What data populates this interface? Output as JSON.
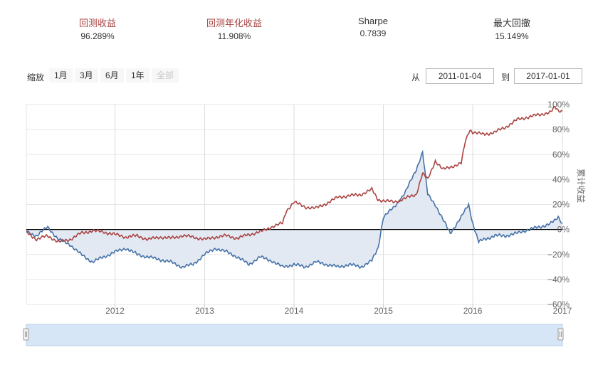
{
  "stats": [
    {
      "label": "回测收益",
      "value": "96.289%",
      "label_color": "#a94442"
    },
    {
      "label": "回测年化收益",
      "value": "11.908%",
      "label_color": "#a94442"
    },
    {
      "label": "Sharpe",
      "value": "0.7839",
      "label_color": "#333333"
    },
    {
      "label": "最大回撤",
      "value": "15.149%",
      "label_color": "#333333"
    }
  ],
  "toolbar": {
    "zoom_label": "缩放",
    "zoom_buttons": [
      "1月",
      "3月",
      "6月",
      "1年",
      "全部"
    ],
    "from_label": "从",
    "from_date": "2011-01-04",
    "to_label": "到",
    "to_date": "2017-01-01"
  },
  "chart_data": {
    "type": "line",
    "ylabel": "累计收益",
    "x_ticks": [
      "2012",
      "2013",
      "2014",
      "2015",
      "2016",
      "2017"
    ],
    "y_ticks": [
      "100%",
      "80%",
      "60%",
      "40%",
      "20%",
      "0%",
      "−20%",
      "−40%",
      "−60%"
    ],
    "xlim": [
      "2011-01-04",
      "2017-01-01"
    ],
    "ylim": [
      -60,
      100
    ],
    "grid": true,
    "colors": {
      "strategy": "#a94442",
      "benchmark": "#4572a7",
      "benchmark_fill": "#e3e9f3"
    },
    "series": [
      {
        "key": "strategy",
        "x": [
          "2011-01-04",
          "2011-02-15",
          "2011-04-01",
          "2011-05-15",
          "2011-07-01",
          "2011-08-15",
          "2011-10-01",
          "2011-11-15",
          "2012-01-01",
          "2012-02-15",
          "2012-04-01",
          "2012-05-15",
          "2012-07-01",
          "2012-08-15",
          "2012-10-01",
          "2012-11-15",
          "2013-01-01",
          "2013-02-15",
          "2013-04-01",
          "2013-05-15",
          "2013-07-01",
          "2013-08-15",
          "2013-10-01",
          "2013-11-15",
          "2013-12-01",
          "2014-01-01",
          "2014-02-15",
          "2014-04-01",
          "2014-05-15",
          "2014-07-01",
          "2014-08-15",
          "2014-10-01",
          "2014-11-15",
          "2014-12-10",
          "2015-01-01",
          "2015-02-15",
          "2015-04-01",
          "2015-05-15",
          "2015-06-10",
          "2015-07-01",
          "2015-08-01",
          "2015-09-01",
          "2015-10-01",
          "2015-11-15",
          "2015-12-01",
          "2015-12-20",
          "2016-01-01",
          "2016-02-15",
          "2016-04-01",
          "2016-05-15",
          "2016-07-01",
          "2016-08-15",
          "2016-10-01",
          "2016-11-15",
          "2016-12-01",
          "2016-12-15",
          "2017-01-01"
        ],
        "y": [
          -2,
          -8,
          -5,
          -10,
          -8,
          -3,
          -1,
          -2,
          -4,
          -6,
          -5,
          -8,
          -6,
          -7,
          -5,
          -6,
          -8,
          -6,
          -5,
          -7,
          -4,
          -2,
          2,
          5,
          15,
          22,
          18,
          17,
          21,
          26,
          27,
          28,
          32,
          24,
          23,
          22,
          25,
          28,
          45,
          40,
          55,
          48,
          50,
          53,
          70,
          80,
          78,
          76,
          78,
          82,
          88,
          90,
          92,
          94,
          98,
          95,
          95
        ]
      },
      {
        "key": "benchmark",
        "x": [
          "2011-01-04",
          "2011-02-15",
          "2011-04-01",
          "2011-05-15",
          "2011-07-01",
          "2011-08-15",
          "2011-10-01",
          "2011-11-15",
          "2012-01-01",
          "2012-02-15",
          "2012-04-01",
          "2012-05-15",
          "2012-07-01",
          "2012-08-15",
          "2012-10-01",
          "2012-11-15",
          "2013-01-01",
          "2013-02-15",
          "2013-04-01",
          "2013-05-15",
          "2013-07-01",
          "2013-08-15",
          "2013-10-01",
          "2013-11-15",
          "2014-01-01",
          "2014-02-15",
          "2014-04-01",
          "2014-05-15",
          "2014-07-01",
          "2014-08-15",
          "2014-10-01",
          "2014-11-15",
          "2014-12-10",
          "2015-01-01",
          "2015-02-15",
          "2015-04-01",
          "2015-05-15",
          "2015-06-10",
          "2015-07-01",
          "2015-08-01",
          "2015-09-01",
          "2015-10-01",
          "2015-11-15",
          "2015-12-15",
          "2016-01-01",
          "2016-01-25",
          "2016-02-15",
          "2016-04-01",
          "2016-05-15",
          "2016-07-01",
          "2016-08-15",
          "2016-10-01",
          "2016-11-15",
          "2016-12-01",
          "2016-12-15",
          "2017-01-01"
        ],
        "y": [
          -2,
          -5,
          2,
          -8,
          -12,
          -20,
          -26,
          -22,
          -18,
          -15,
          -20,
          -22,
          -24,
          -26,
          -30,
          -28,
          -20,
          -15,
          -18,
          -22,
          -28,
          -22,
          -25,
          -30,
          -28,
          -30,
          -26,
          -28,
          -30,
          -28,
          -30,
          -25,
          -15,
          10,
          18,
          30,
          48,
          62,
          28,
          20,
          8,
          -3,
          10,
          20,
          5,
          -10,
          -8,
          -5,
          -5,
          -3,
          0,
          2,
          5,
          7,
          10,
          5
        ]
      }
    ]
  },
  "navigator": {}
}
